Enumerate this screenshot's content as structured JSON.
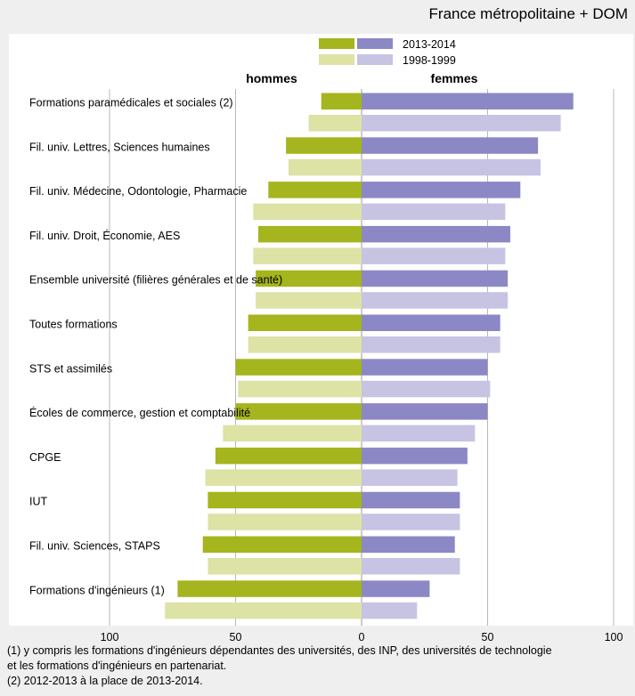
{
  "header": {
    "note": "France métropolitaine + DOM"
  },
  "chart_data": {
    "type": "bar",
    "orientation": "horizontal-diverging",
    "left_label": "hommes",
    "right_label": "femmes",
    "legend": {
      "placement": "top-center",
      "entries": [
        {
          "label": "2013-2014",
          "colors": {
            "hommes": "#a4b51e",
            "femmes": "#8c88c6"
          }
        },
        {
          "label": "1998-1999",
          "colors": {
            "hommes": "#dde2a5",
            "femmes": "#c6c3e3"
          }
        }
      ]
    },
    "categories": [
      "Formations paramédicales et sociales (2)",
      "Fil. univ. Lettres, Sciences humaines",
      "Fil. univ. Médecine, Odontologie, Pharmacie",
      "Fil. univ. Droit, Économie, AES",
      "Ensemble université (filières générales et de santé)",
      "Toutes formations",
      "STS et assimilés",
      "Écoles de commerce, gestion et comptabilité",
      "CPGE",
      "IUT",
      "Fil. univ. Sciences, STAPS",
      "Formations d'ingénieurs (1)"
    ],
    "series": [
      {
        "name": "2013-2014",
        "sex": "hommes",
        "values": [
          16,
          30,
          37,
          41,
          42,
          45,
          50,
          50,
          58,
          61,
          63,
          73
        ]
      },
      {
        "name": "1998-1999",
        "sex": "hommes",
        "values": [
          21,
          29,
          43,
          43,
          42,
          45,
          49,
          55,
          62,
          61,
          61,
          78
        ]
      },
      {
        "name": "2013-2014",
        "sex": "femmes",
        "values": [
          84,
          70,
          63,
          59,
          58,
          55,
          50,
          50,
          42,
          39,
          37,
          27
        ]
      },
      {
        "name": "1998-1999",
        "sex": "femmes",
        "values": [
          79,
          71,
          57,
          57,
          58,
          55,
          51,
          45,
          38,
          39,
          39,
          22
        ]
      }
    ],
    "x_ticks": [
      "100",
      "50",
      "0",
      "50",
      "100"
    ],
    "xlim": [
      -100,
      100
    ],
    "grid": true
  },
  "footnotes": [
    "(1)  y compris les formations d'ingénieurs dépendantes des universités, des INP, des universités de technologie",
    "et les formations d'ingénieurs en partenariat.",
    "(2) 2012-2013 à la place de 2013-2014."
  ]
}
